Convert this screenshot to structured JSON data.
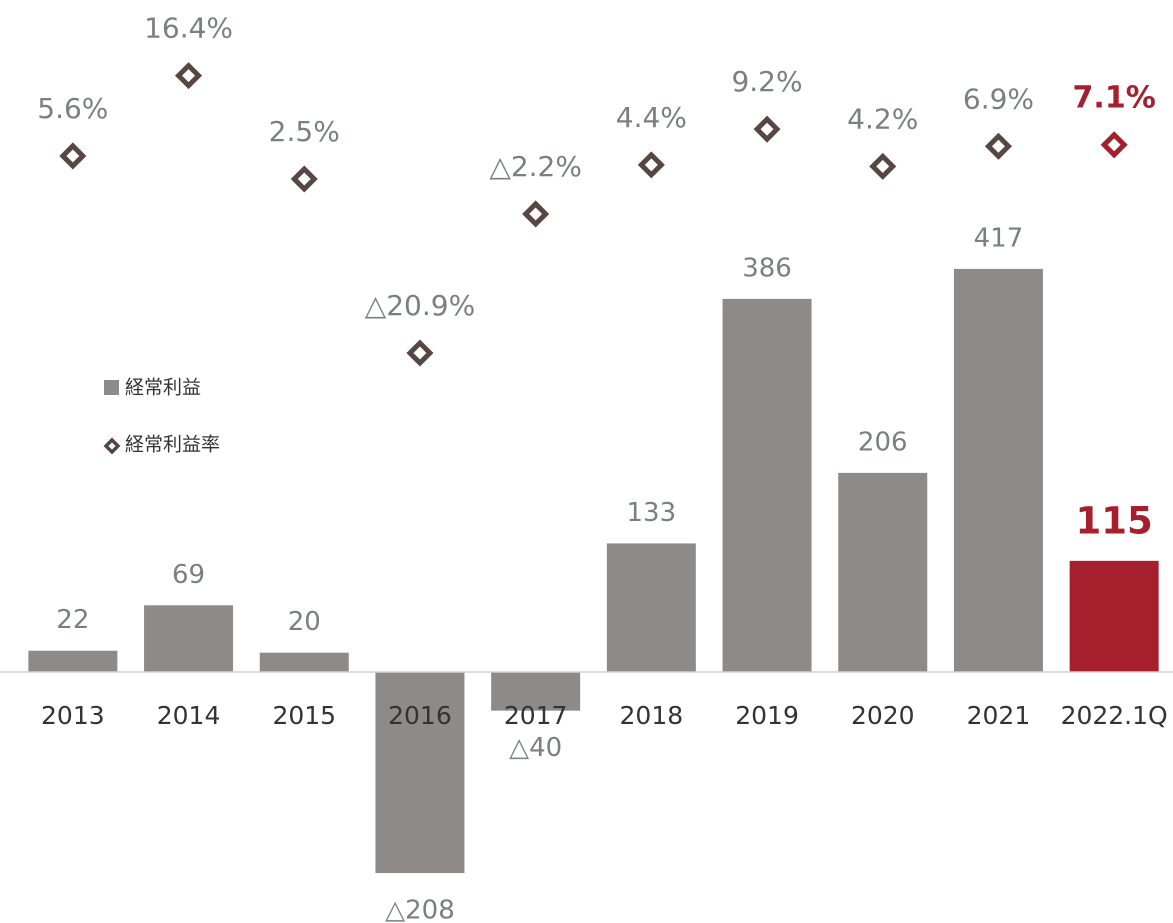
{
  "chart_data": {
    "type": "bar",
    "categories": [
      "2013",
      "2014",
      "2015",
      "2016",
      "2017",
      "2018",
      "2019",
      "2020",
      "2021",
      "2022.1Q"
    ],
    "ylim": [
      -240,
      660
    ],
    "y2lim": [
      -95,
      22
    ],
    "label_color": "#7a8081",
    "series": [
      {
        "name": "経常利益",
        "type": "bar",
        "color": "#8e8a87",
        "colors": [
          "#8e8a87",
          "#8e8a87",
          "#8e8a87",
          "#8e8a87",
          "#8e8a87",
          "#8e8a87",
          "#8e8a87",
          "#8e8a87",
          "#8e8a87",
          "#a51f2d"
        ],
        "values": [
          22,
          69,
          20,
          -208,
          -40,
          133,
          386,
          206,
          417,
          115
        ],
        "value_labels": [
          "22",
          "69",
          "20",
          "△208",
          "△40",
          "133",
          "386",
          "206",
          "417",
          "115"
        ]
      },
      {
        "name": "経常利益率",
        "type": "scatter",
        "axis": "y2",
        "color": "#574743",
        "colors": [
          "#574743",
          "#574743",
          "#574743",
          "#574743",
          "#574743",
          "#574743",
          "#574743",
          "#574743",
          "#574743",
          "#a51f2d"
        ],
        "values": [
          5.6,
          16.4,
          2.5,
          -20.9,
          -2.2,
          4.4,
          9.2,
          4.2,
          6.9,
          7.1
        ],
        "value_labels": [
          "5.6%",
          "16.4%",
          "2.5%",
          "△20.9%",
          "△2.2%",
          "4.4%",
          "9.2%",
          "4.2%",
          "6.9%",
          "7.1%"
        ]
      }
    ]
  }
}
